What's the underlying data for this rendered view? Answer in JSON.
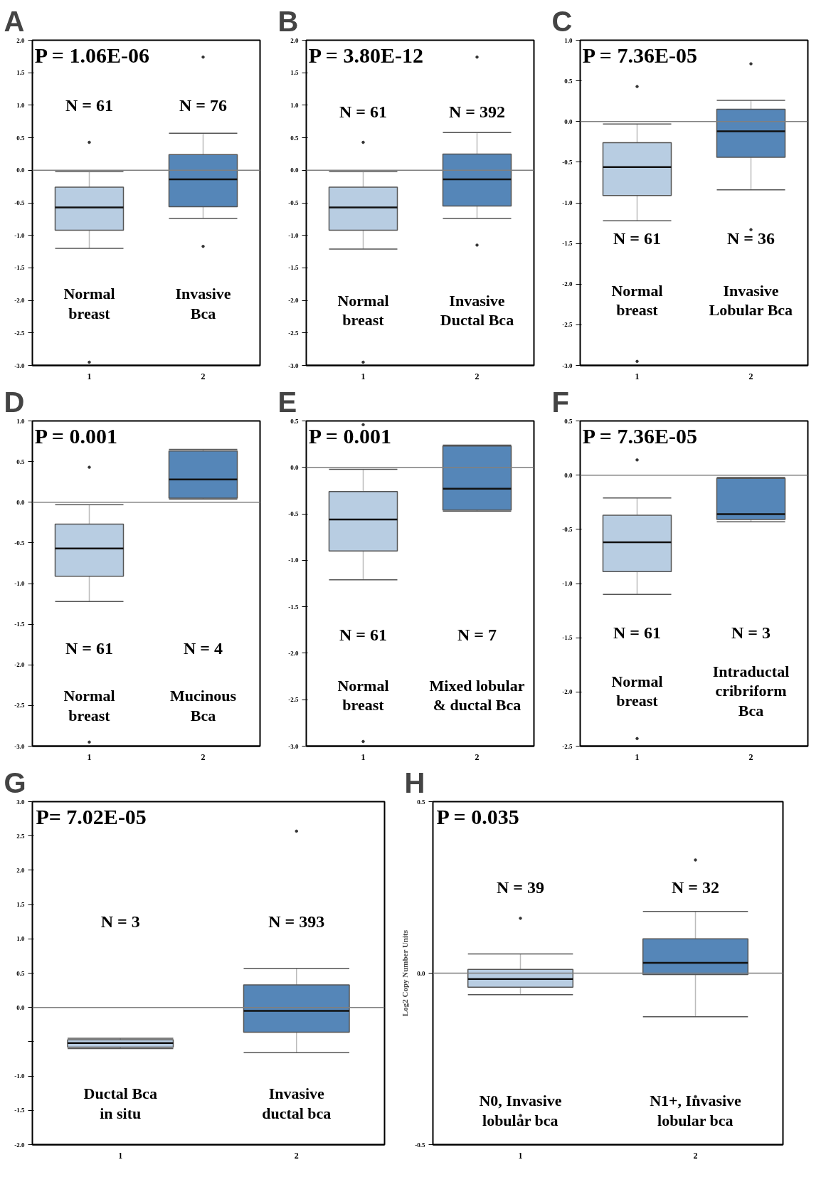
{
  "chart_data": [
    {
      "type": "box",
      "title": "A",
      "categories": [
        "1",
        "2"
      ],
      "colors": [
        "#b8cde2",
        "#5586b8"
      ],
      "ylim": [
        -3,
        2
      ],
      "yticks": [
        {
          "value": 2,
          "label": "2.0"
        },
        1.5,
        {
          "value": 1,
          "label": "1.0"
        },
        0.5,
        {
          "value": 0,
          "label": "0.0"
        },
        -0.5,
        {
          "value": -1,
          "label": "-1.0"
        },
        -1.5,
        {
          "value": -2,
          "label": "-2.0"
        },
        -2.5,
        {
          "value": -3,
          "label": "-3.0"
        }
      ],
      "ref_lines": [
        {
          "axis": "y",
          "value": 0,
          "color": "#808080"
        }
      ],
      "boxes": [
        {
          "low": -1.2,
          "q1": -0.92,
          "median": -0.57,
          "q3": -0.26,
          "high": -0.02,
          "outliers": [
            0.43,
            -2.95
          ]
        },
        {
          "low": -0.74,
          "q1": -0.56,
          "median": -0.14,
          "q3": 0.24,
          "high": 0.57,
          "outliers": [
            1.74,
            -1.17
          ]
        }
      ],
      "annotations": [
        "P = 1.06E-06",
        "N = 61",
        "N = 76",
        "Normal\nbreast",
        "Invasive\nBca"
      ]
    },
    {
      "type": "box",
      "title": "B",
      "categories": [
        "1",
        "2"
      ],
      "colors": [
        "#b8cde2",
        "#5586b8"
      ],
      "ylim": [
        -3,
        2
      ],
      "yticks": [
        {
          "value": 2,
          "label": "2.0"
        },
        1.5,
        {
          "value": 1,
          "label": "1.0"
        },
        0.5,
        {
          "value": 0,
          "label": "0.0"
        },
        -0.5,
        {
          "value": -1,
          "label": "-1.0"
        },
        -1.5,
        {
          "value": -2,
          "label": "-2.0"
        },
        -2.5,
        {
          "value": -3,
          "label": "-3.0"
        }
      ],
      "ref_lines": [
        {
          "axis": "y",
          "value": 0,
          "color": "#808080"
        }
      ],
      "boxes": [
        {
          "low": -1.21,
          "q1": -0.92,
          "median": -0.57,
          "q3": -0.26,
          "high": -0.02,
          "outliers": [
            0.43,
            -2.95
          ]
        },
        {
          "low": -0.74,
          "q1": -0.55,
          "median": -0.14,
          "q3": 0.25,
          "high": 0.58,
          "outliers": [
            1.74,
            -1.15
          ]
        }
      ],
      "annotations": [
        "P = 3.80E-12",
        "N = 61",
        "N = 392",
        "Normal\nbreast",
        "Invasive\nDuctal Bca"
      ]
    },
    {
      "type": "box",
      "title": "C",
      "categories": [
        "1",
        "2"
      ],
      "colors": [
        "#b8cde2",
        "#5586b8"
      ],
      "ylim": [
        -3,
        1
      ],
      "yticks": [
        {
          "value": 1,
          "label": "1.0"
        },
        0.5,
        {
          "value": 0,
          "label": "0.0"
        },
        -0.5,
        {
          "value": -1,
          "label": "-1.0"
        },
        -1.5,
        {
          "value": -2,
          "label": "-2.0"
        },
        -2.5,
        {
          "value": -3,
          "label": "-3.0"
        }
      ],
      "ref_lines": [
        {
          "axis": "y",
          "value": 0,
          "color": "#808080"
        }
      ],
      "boxes": [
        {
          "low": -1.22,
          "q1": -0.91,
          "median": -0.56,
          "q3": -0.26,
          "high": -0.03,
          "outliers": [
            0.43,
            -2.95
          ]
        },
        {
          "low": -0.84,
          "q1": -0.44,
          "median": -0.12,
          "q3": 0.15,
          "high": 0.26,
          "outliers": [
            0.71,
            -1.33
          ]
        }
      ],
      "annotations": [
        "P = 7.36E-05",
        "N = 61",
        "N = 36",
        "Normal\nbreast",
        "Invasive\nLobular Bca"
      ]
    },
    {
      "type": "box",
      "title": "D",
      "categories": [
        "1",
        "2"
      ],
      "colors": [
        "#b8cde2",
        "#5586b8"
      ],
      "ylim": [
        -3,
        1
      ],
      "yticks": [
        {
          "value": 1,
          "label": "1.0"
        },
        0.5,
        {
          "value": 0,
          "label": "0.0"
        },
        -0.5,
        {
          "value": -1,
          "label": "-1.0"
        },
        -1.5,
        {
          "value": -2,
          "label": "-2.0"
        },
        -2.5,
        {
          "value": -3,
          "label": "-3.0"
        }
      ],
      "ref_lines": [
        {
          "axis": "y",
          "value": 0,
          "color": "#808080"
        }
      ],
      "boxes": [
        {
          "low": -1.22,
          "q1": -0.91,
          "median": -0.57,
          "q3": -0.27,
          "high": -0.03,
          "outliers": [
            0.43,
            -2.95
          ]
        },
        {
          "low": 0.04,
          "q1": 0.05,
          "median": 0.28,
          "q3": 0.63,
          "high": 0.65
        }
      ],
      "annotations": [
        "P = 0.001",
        "N = 61",
        "N = 4",
        "Normal\nbreast",
        "Mucinous\nBca"
      ]
    },
    {
      "type": "box",
      "title": "E",
      "categories": [
        "1",
        "2"
      ],
      "colors": [
        "#b8cde2",
        "#5586b8"
      ],
      "ylim": [
        -3,
        0.5
      ],
      "yticks": [
        0.5,
        {
          "value": 0,
          "label": "0.0"
        },
        -0.5,
        {
          "value": -1,
          "label": "-1.0"
        },
        -1.5,
        {
          "value": -2,
          "label": "-2.0"
        },
        -2.5,
        {
          "value": -3,
          "label": "-3.0"
        }
      ],
      "ref_lines": [
        {
          "axis": "y",
          "value": 0,
          "color": "#808080"
        }
      ],
      "boxes": [
        {
          "low": -1.21,
          "q1": -0.9,
          "median": -0.56,
          "q3": -0.26,
          "high": -0.02,
          "outliers": [
            0.46,
            -2.95
          ]
        },
        {
          "low": -0.47,
          "q1": -0.46,
          "median": -0.23,
          "q3": 0.23,
          "high": 0.24
        }
      ],
      "annotations": [
        "P = 0.001",
        "N = 61",
        "N = 7",
        "Normal\nbreast",
        "Mixed lobular\n& ductal Bca"
      ]
    },
    {
      "type": "box",
      "title": "F",
      "categories": [
        "1",
        "2"
      ],
      "colors": [
        "#b8cde2",
        "#5586b8"
      ],
      "ylim": [
        -2.5,
        0.5
      ],
      "yticks": [
        0.5,
        {
          "value": 0,
          "label": "0.0"
        },
        -0.5,
        {
          "value": -1,
          "label": "-1.0"
        },
        -1.5,
        {
          "value": -2,
          "label": "-2.0"
        },
        -2.5
      ],
      "ref_lines": [
        {
          "axis": "y",
          "value": 0,
          "color": "#808080"
        }
      ],
      "boxes": [
        {
          "low": -1.1,
          "q1": -0.89,
          "median": -0.62,
          "q3": -0.37,
          "high": -0.21,
          "outliers": [
            0.14,
            -2.43
          ]
        },
        {
          "low": -0.43,
          "q1": -0.41,
          "median": -0.36,
          "q3": -0.03,
          "high": -0.02
        }
      ],
      "annotations": [
        "P = 7.36E-05",
        "N = 61",
        "N = 3",
        "Normal\nbreast",
        "Intraductal\ncribriform\nBca"
      ]
    },
    {
      "type": "box",
      "title": "G",
      "categories": [
        "1",
        "2"
      ],
      "colors": [
        "#b8cde2",
        "#5586b8"
      ],
      "ylim": [
        -2,
        3
      ],
      "yticks": [
        {
          "value": 3,
          "label": "3.0"
        },
        2.5,
        {
          "value": 2,
          "label": "2.0"
        },
        1.5,
        {
          "value": 1,
          "label": "1.0"
        },
        0.5,
        {
          "value": 0,
          "label": "0.0"
        },
        {
          "value": -0.5,
          "label": null
        },
        {
          "value": -1,
          "label": "-1.0"
        },
        -1.5,
        {
          "value": -2,
          "label": "-2.0"
        }
      ],
      "ref_lines": [
        {
          "axis": "y",
          "value": 0,
          "color": "#808080"
        }
      ],
      "boxes": [
        {
          "low": -0.6,
          "q1": -0.58,
          "median": -0.52,
          "q3": -0.47,
          "high": -0.45
        },
        {
          "low": -0.66,
          "q1": -0.36,
          "median": -0.05,
          "q3": 0.33,
          "high": 0.57,
          "outliers": [
            2.57
          ]
        }
      ],
      "annotations": [
        "P= 7.02E-05",
        "N = 3",
        "N = 393",
        "Ductal Bca\nin situ",
        "Invasive\nductal bca"
      ]
    },
    {
      "type": "box",
      "title": "H",
      "ylabel": "Log2 Copy Number Units",
      "categories": [
        "1",
        "2"
      ],
      "colors": [
        "#b8cde2",
        "#5586b8"
      ],
      "ylim": [
        -0.5,
        0.5
      ],
      "yticks": [
        0.5,
        {
          "value": 0,
          "label": "0.0"
        },
        -0.5
      ],
      "ref_lines": [
        {
          "axis": "y",
          "value": 0,
          "color": "#808080"
        }
      ],
      "boxes": [
        {
          "low": -0.063,
          "q1": -0.041,
          "median": -0.017,
          "q3": 0.011,
          "high": 0.056,
          "outliers": [
            0.16,
            -0.415
          ]
        },
        {
          "low": -0.127,
          "q1": -0.004,
          "median": 0.03,
          "q3": 0.1,
          "high": 0.18,
          "outliers": [
            0.33,
            -0.36
          ]
        }
      ],
      "annotations": [
        "P = 0.035",
        "N = 39",
        "N = 32",
        "N0, Invasive\nlobular bca",
        "N1+, Invasive\nlobular bca"
      ]
    }
  ]
}
